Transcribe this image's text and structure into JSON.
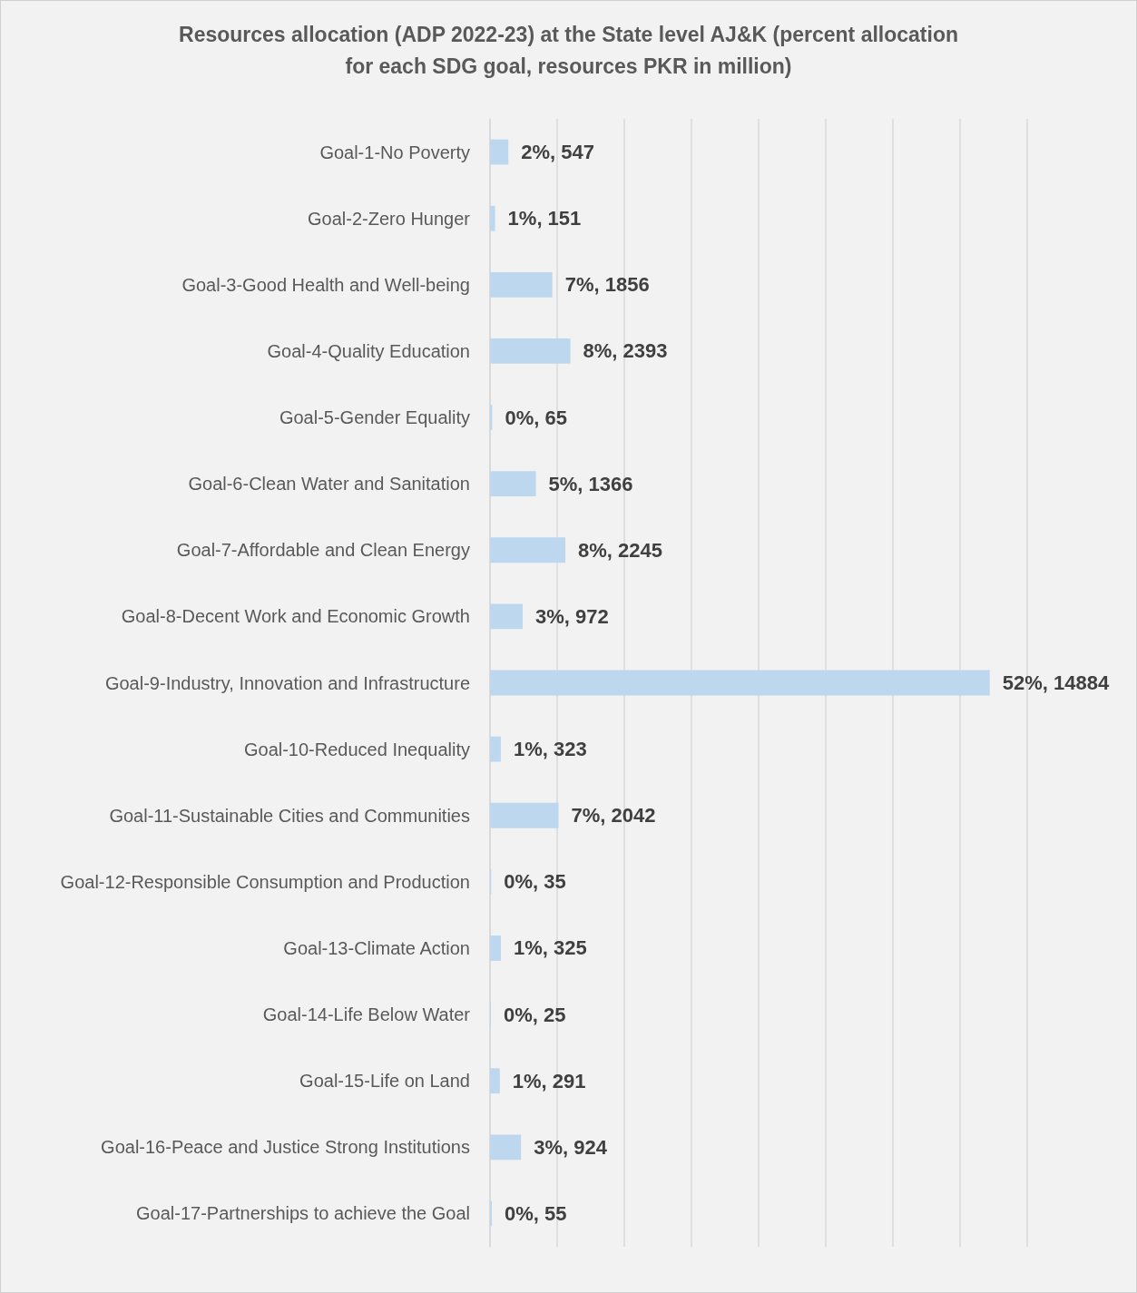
{
  "chart_data": {
    "type": "bar",
    "orientation": "horizontal",
    "title": "Resources allocation (ADP 2022-23) at the State level AJ&K (percent allocation\nfor each SDG goal, resources PKR in million)",
    "categories": [
      "Goal-1-No Poverty",
      "Goal-2-Zero Hunger",
      "Goal-3-Good Health and Well-being",
      "Goal-4-Quality Education",
      "Goal-5-Gender Equality",
      "Goal-6-Clean Water and Sanitation",
      "Goal-7-Affordable and Clean Energy",
      "Goal-8-Decent Work and Economic Growth",
      "Goal-9-Industry, Innovation and Infrastructure",
      "Goal-10-Reduced Inequality",
      "Goal-11-Sustainable Cities and Communities",
      "Goal-12-Responsible Consumption and Production",
      "Goal-13-Climate Action",
      "Goal-14-Life Below Water",
      "Goal-15-Life on Land",
      "Goal-16-Peace and Justice Strong Institutions",
      "Goal-17-Partnerships to achieve the Goal"
    ],
    "values": [
      547,
      151,
      1856,
      2393,
      65,
      1366,
      2245,
      972,
      14884,
      323,
      2042,
      35,
      325,
      25,
      291,
      924,
      55
    ],
    "value_labels": [
      "2%, 547",
      "1%, 151",
      "7%, 1856",
      "8%, 2393",
      "0%, 65",
      "5%, 1366",
      "8%, 2245",
      "3%, 972",
      "52%, 14884",
      "1%, 323",
      "7%, 2042",
      "0%, 35",
      "1%, 325",
      "0%, 25",
      "1%, 291",
      "3%, 924",
      "0%, 55"
    ],
    "color": "#bdd7ee",
    "xlim": [
      0,
      16000
    ],
    "xticks": [
      {
        "value": 0,
        "label": null
      },
      {
        "value": 2000,
        "label": null
      },
      {
        "value": 4000,
        "label": null
      },
      {
        "value": 6000,
        "label": null
      },
      {
        "value": 8000,
        "label": null
      },
      {
        "value": 10000,
        "label": null
      },
      {
        "value": 12000,
        "label": null
      },
      {
        "value": 14000,
        "label": null
      },
      {
        "value": 16000,
        "label": null
      }
    ],
    "grid": "x",
    "tick_labels": "y"
  }
}
